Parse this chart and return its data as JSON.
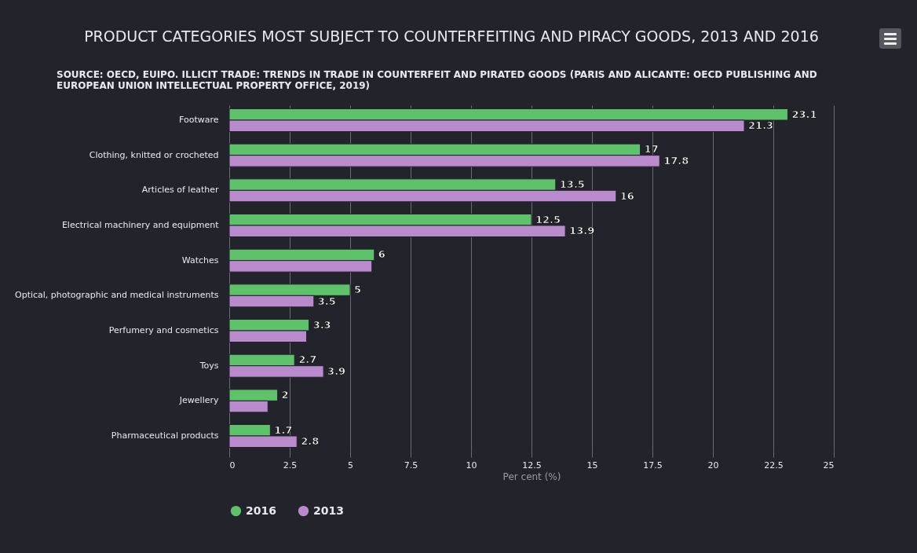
{
  "chart_data": {
    "type": "bar",
    "orientation": "horizontal",
    "title": "PRODUCT CATEGORIES MOST SUBJECT TO COUNTERFEITING AND PIRACY GOODS, 2013 AND 2016",
    "annotations": [
      "SOURCE: OECD, EUIPO. ILLICIT TRADE: TRENDS IN TRADE IN COUNTERFEIT AND PIRATED GOODS (PARIS AND ALICANTE: OECD PUBLISHING AND EUROPEAN UNION INTELLECTUAL PROPERTY OFFICE, 2019)"
    ],
    "categories": [
      "Footware",
      "Clothing, knitted or crocheted",
      "Articles of leather",
      "Electrical machinery and equipment",
      "Watches",
      "Optical, photographic and medical instruments",
      "Perfumery and cosmetics",
      "Toys",
      "Jewellery",
      "Pharmaceutical products"
    ],
    "series": [
      {
        "name": "2016",
        "color": "#5ec26a",
        "values": [
          23.1,
          17,
          13.5,
          12.5,
          6,
          5,
          3.3,
          2.7,
          2,
          1.7
        ],
        "value_labels": [
          "23.1",
          "17",
          "13.5",
          "12.5",
          "6",
          "5",
          "3.3",
          "2.7",
          "2",
          "1.7"
        ]
      },
      {
        "name": "2013",
        "color": "#b98bcc",
        "values": [
          21.3,
          17.8,
          16,
          13.9,
          5.9,
          3.5,
          3.2,
          3.9,
          1.6,
          2.8
        ],
        "value_labels": [
          "21.3",
          "17.8",
          "16",
          "13.9",
          null,
          "3.5",
          null,
          "3.9",
          null,
          "2.8"
        ]
      }
    ],
    "xlabel": "Per cent (%)",
    "xlim": [
      0,
      25
    ],
    "xticks": [
      0,
      2.5,
      5,
      7.5,
      10,
      12.5,
      15,
      17.5,
      20,
      22.5,
      25
    ],
    "grid": "x",
    "legend": "bottom"
  }
}
